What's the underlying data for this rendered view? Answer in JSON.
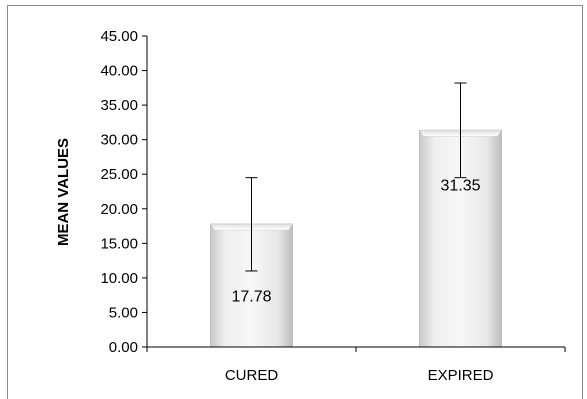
{
  "chart_data": {
    "type": "bar",
    "categories": [
      "CURED",
      "EXPIRED"
    ],
    "values": [
      17.78,
      31.35
    ],
    "data_labels": [
      "17.78",
      "31.35"
    ],
    "error_bars": [
      {
        "low": 11.0,
        "high": 24.5
      },
      {
        "low": 24.5,
        "high": 38.2
      }
    ],
    "title": "",
    "xlabel": "",
    "ylabel": "MEAN VALUES",
    "ylim": [
      0,
      45
    ],
    "y_ticks": [
      "0.00",
      "5.00",
      "10.00",
      "15.00",
      "20.00",
      "25.00",
      "30.00",
      "35.00",
      "40.00",
      "45.00"
    ],
    "grid": false,
    "legend": "none",
    "colors": {
      "bar_fill_light": "#f4f4f4",
      "bar_fill_dark": "#cfcfcf",
      "bar_stroke": "#bdbdbd",
      "axis": "#000000"
    }
  }
}
